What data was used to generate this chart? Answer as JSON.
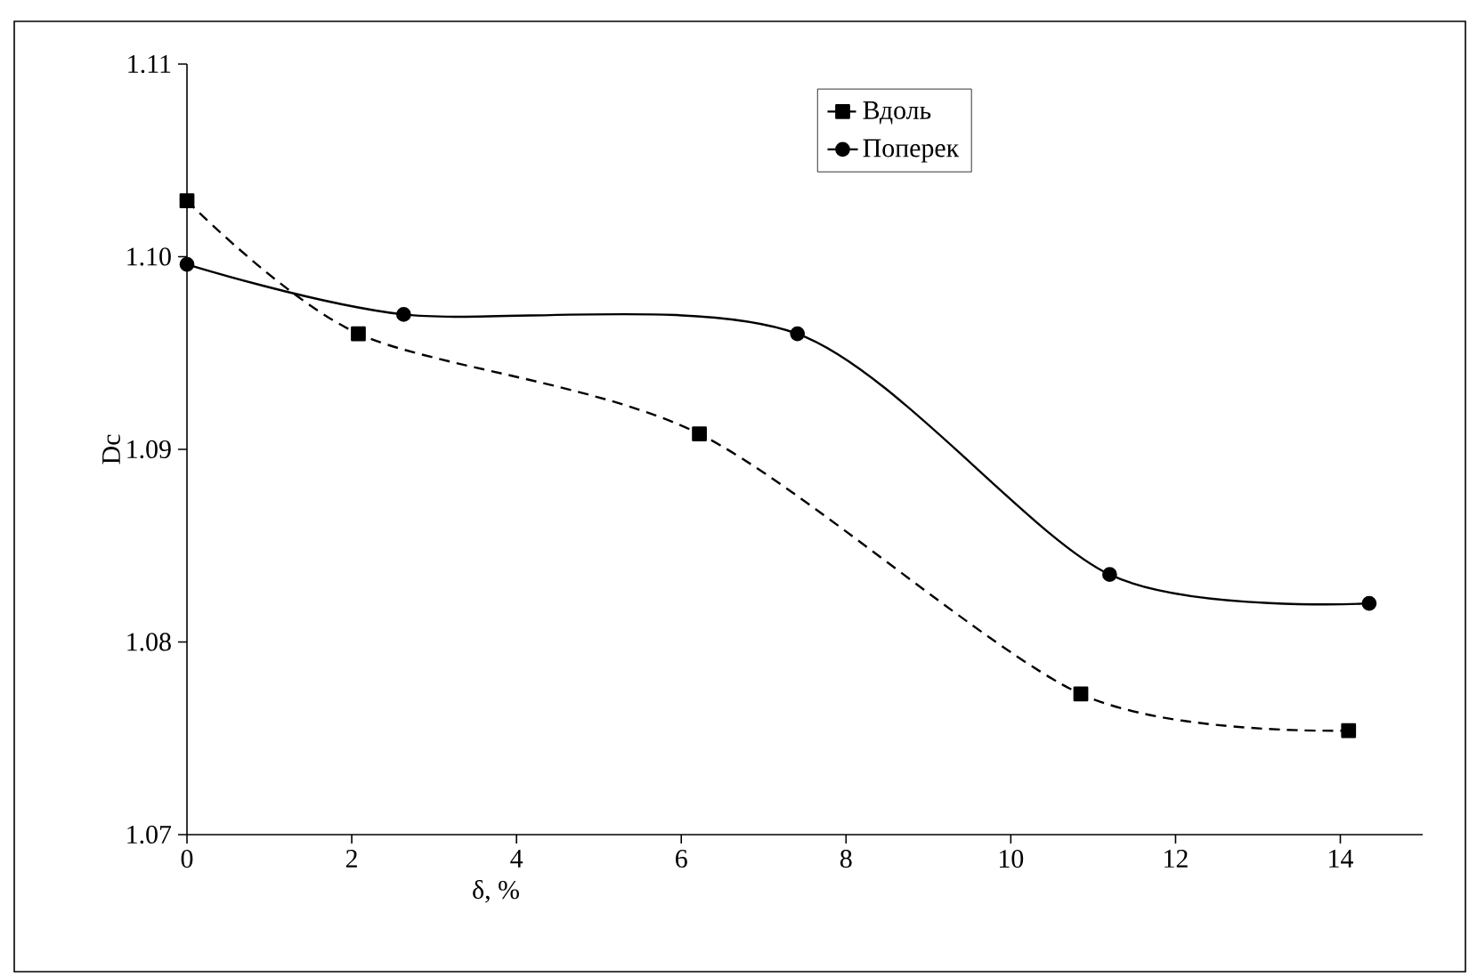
{
  "chart_data": {
    "type": "line",
    "xlabel": "δ, %",
    "ylabel": "Dc",
    "xlim": [
      0,
      15
    ],
    "ylim": [
      1.07,
      1.11
    ],
    "xticks": [
      0,
      2,
      4,
      6,
      8,
      10,
      12,
      14
    ],
    "yticks": [
      {
        "value": 1.07,
        "label": "1.07"
      },
      {
        "value": 1.08,
        "label": "1.08"
      },
      {
        "value": 1.09,
        "label": "1.09"
      },
      {
        "value": 1.1,
        "label": "1.10"
      },
      {
        "value": 1.11,
        "label": "1.11"
      }
    ],
    "legend": "top",
    "grid": false,
    "series": [
      {
        "name": "Вдоль",
        "color": "#000000",
        "marker": "square",
        "line_style": "dashed",
        "x": [
          0,
          2.08,
          6.22,
          10.85,
          14.1
        ],
        "values": [
          1.1029,
          1.096,
          1.0908,
          1.0773,
          1.0754
        ]
      },
      {
        "name": "Поперек",
        "color": "#000000",
        "marker": "circle",
        "line_style": "solid",
        "x": [
          0,
          2.63,
          7.41,
          11.2,
          14.35
        ],
        "values": [
          1.0996,
          1.097,
          1.096,
          1.0835,
          1.082
        ]
      }
    ]
  }
}
